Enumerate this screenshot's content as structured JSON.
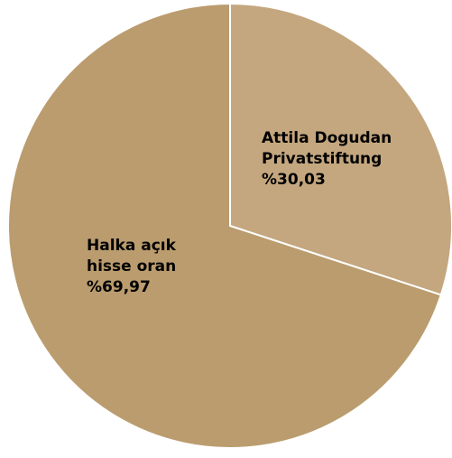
{
  "chart_data": {
    "type": "pie",
    "title": "",
    "slices": [
      {
        "label_lines": [
          "Attila Dogudan",
          "Privatstiftung",
          "%30,03"
        ],
        "value": 30.03,
        "color": "#C4A77F"
      },
      {
        "label_lines": [
          "Halka açık",
          "hisse oran",
          "%69,97"
        ],
        "value": 69.97,
        "color": "#BA9C6E"
      }
    ],
    "start_angle": "12 o'clock",
    "direction": "clockwise",
    "slice_separator_color": "#ffffff",
    "legend": "none"
  }
}
